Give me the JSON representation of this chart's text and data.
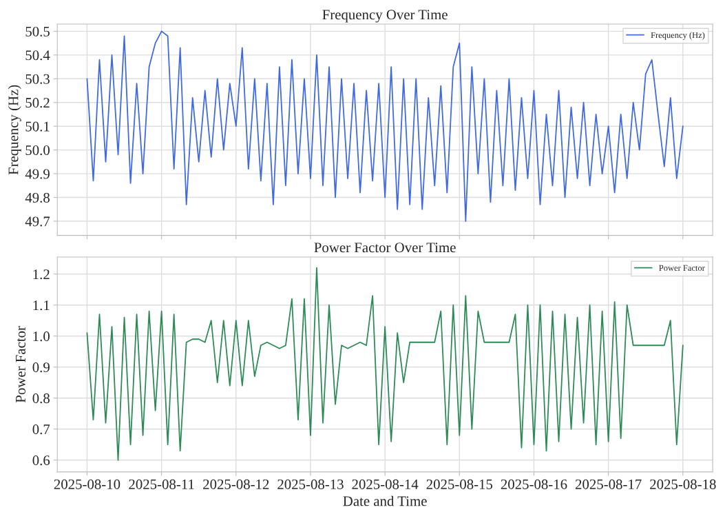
{
  "chart_data": [
    {
      "type": "line",
      "title": "Frequency Over Time",
      "ylabel": "Frequency (Hz)",
      "x": [
        "2025-08-10T00:00",
        "2025-08-10T02:00",
        "2025-08-10T04:00",
        "2025-08-10T06:00",
        "2025-08-10T08:00",
        "2025-08-10T10:00",
        "2025-08-10T12:00",
        "2025-08-10T14:00",
        "2025-08-10T16:00",
        "2025-08-10T18:00",
        "2025-08-10T20:00",
        "2025-08-10T22:00",
        "2025-08-11T00:00",
        "2025-08-11T02:00",
        "2025-08-11T04:00",
        "2025-08-11T06:00",
        "2025-08-11T08:00",
        "2025-08-11T10:00",
        "2025-08-11T12:00",
        "2025-08-11T14:00",
        "2025-08-11T16:00",
        "2025-08-11T18:00",
        "2025-08-11T20:00",
        "2025-08-11T22:00",
        "2025-08-12T00:00",
        "2025-08-12T02:00",
        "2025-08-12T04:00",
        "2025-08-12T06:00",
        "2025-08-12T08:00",
        "2025-08-12T10:00",
        "2025-08-12T12:00",
        "2025-08-12T14:00",
        "2025-08-12T16:00",
        "2025-08-12T18:00",
        "2025-08-12T20:00",
        "2025-08-12T22:00",
        "2025-08-13T00:00",
        "2025-08-13T02:00",
        "2025-08-13T04:00",
        "2025-08-13T06:00",
        "2025-08-13T08:00",
        "2025-08-13T10:00",
        "2025-08-13T12:00",
        "2025-08-13T14:00",
        "2025-08-13T16:00",
        "2025-08-13T18:00",
        "2025-08-13T20:00",
        "2025-08-13T22:00",
        "2025-08-14T00:00",
        "2025-08-14T02:00",
        "2025-08-14T04:00",
        "2025-08-14T06:00",
        "2025-08-14T08:00",
        "2025-08-14T10:00",
        "2025-08-14T12:00",
        "2025-08-14T14:00",
        "2025-08-14T16:00",
        "2025-08-14T18:00",
        "2025-08-14T20:00",
        "2025-08-14T22:00",
        "2025-08-15T00:00",
        "2025-08-15T02:00",
        "2025-08-15T04:00",
        "2025-08-15T06:00",
        "2025-08-15T08:00",
        "2025-08-15T10:00",
        "2025-08-15T12:00",
        "2025-08-15T14:00",
        "2025-08-15T16:00",
        "2025-08-15T18:00",
        "2025-08-15T20:00",
        "2025-08-15T22:00",
        "2025-08-16T00:00",
        "2025-08-16T02:00",
        "2025-08-16T04:00",
        "2025-08-16T06:00",
        "2025-08-16T08:00",
        "2025-08-16T10:00",
        "2025-08-16T12:00",
        "2025-08-16T14:00",
        "2025-08-16T16:00",
        "2025-08-16T18:00",
        "2025-08-16T20:00",
        "2025-08-16T22:00",
        "2025-08-17T00:00",
        "2025-08-17T02:00",
        "2025-08-17T04:00",
        "2025-08-17T06:00",
        "2025-08-17T08:00",
        "2025-08-17T10:00",
        "2025-08-17T12:00",
        "2025-08-17T14:00",
        "2025-08-17T16:00",
        "2025-08-17T18:00",
        "2025-08-17T20:00",
        "2025-08-17T22:00",
        "2025-08-18T00:00"
      ],
      "series": [
        {
          "name": "Frequency (Hz)",
          "color": "#4169e1",
          "values": [
            50.3,
            49.87,
            50.38,
            49.95,
            50.4,
            49.98,
            50.48,
            49.86,
            50.28,
            49.9,
            50.35,
            50.45,
            50.5,
            50.48,
            49.92,
            50.43,
            49.77,
            50.22,
            49.95,
            50.25,
            49.97,
            50.3,
            50.0,
            50.28,
            50.1,
            50.43,
            49.92,
            50.3,
            49.87,
            50.28,
            49.77,
            50.35,
            49.85,
            50.38,
            49.9,
            50.3,
            49.88,
            50.4,
            49.85,
            50.35,
            49.8,
            50.3,
            49.88,
            50.28,
            49.82,
            50.25,
            49.87,
            50.28,
            49.8,
            50.35,
            49.75,
            50.3,
            49.77,
            50.3,
            49.75,
            50.22,
            49.85,
            50.27,
            49.82,
            50.35,
            50.45,
            49.7,
            50.35,
            49.9,
            50.3,
            49.78,
            50.25,
            49.85,
            50.3,
            49.83,
            50.22,
            49.88,
            50.25,
            49.77,
            50.15,
            49.85,
            50.25,
            49.8,
            50.18,
            49.88,
            50.2,
            49.85,
            50.15,
            49.9,
            50.1,
            49.82,
            50.15,
            49.88,
            50.2,
            50.0,
            50.32,
            50.38,
            50.15,
            49.93,
            50.22,
            49.88,
            50.1
          ]
        }
      ],
      "xlim": [
        "2025-08-09T14:24",
        "2025-08-18T09:36"
      ],
      "xticks": [
        "2025-08-10",
        "2025-08-11",
        "2025-08-12",
        "2025-08-13",
        "2025-08-14",
        "2025-08-15",
        "2025-08-16",
        "2025-08-17",
        "2025-08-18"
      ],
      "ylim": [
        49.64,
        50.53
      ],
      "yticks": [
        49.7,
        49.8,
        49.9,
        {
          "value": 50,
          "label": "50.0"
        },
        50.1,
        50.2,
        50.3,
        50.4,
        50.5
      ],
      "grid": true,
      "legend": "top right",
      "tick_labels": "y"
    },
    {
      "type": "line",
      "title": "Power Factor Over Time",
      "ylabel": "Power Factor",
      "xlabel": "Date and Time",
      "x": [
        "2025-08-10T00:00",
        "2025-08-10T02:00",
        "2025-08-10T04:00",
        "2025-08-10T06:00",
        "2025-08-10T08:00",
        "2025-08-10T10:00",
        "2025-08-10T12:00",
        "2025-08-10T14:00",
        "2025-08-10T16:00",
        "2025-08-10T18:00",
        "2025-08-10T20:00",
        "2025-08-10T22:00",
        "2025-08-11T00:00",
        "2025-08-11T02:00",
        "2025-08-11T04:00",
        "2025-08-11T06:00",
        "2025-08-11T08:00",
        "2025-08-11T10:00",
        "2025-08-11T12:00",
        "2025-08-11T14:00",
        "2025-08-11T16:00",
        "2025-08-11T18:00",
        "2025-08-11T20:00",
        "2025-08-11T22:00",
        "2025-08-12T00:00",
        "2025-08-12T02:00",
        "2025-08-12T04:00",
        "2025-08-12T06:00",
        "2025-08-12T08:00",
        "2025-08-12T10:00",
        "2025-08-12T12:00",
        "2025-08-12T14:00",
        "2025-08-12T16:00",
        "2025-08-12T18:00",
        "2025-08-12T20:00",
        "2025-08-12T22:00",
        "2025-08-13T00:00",
        "2025-08-13T02:00",
        "2025-08-13T04:00",
        "2025-08-13T06:00",
        "2025-08-13T08:00",
        "2025-08-13T10:00",
        "2025-08-13T12:00",
        "2025-08-13T14:00",
        "2025-08-13T16:00",
        "2025-08-13T18:00",
        "2025-08-13T20:00",
        "2025-08-13T22:00",
        "2025-08-14T00:00",
        "2025-08-14T02:00",
        "2025-08-14T04:00",
        "2025-08-14T06:00",
        "2025-08-14T08:00",
        "2025-08-14T10:00",
        "2025-08-14T12:00",
        "2025-08-14T14:00",
        "2025-08-14T16:00",
        "2025-08-14T18:00",
        "2025-08-14T20:00",
        "2025-08-14T22:00",
        "2025-08-15T00:00",
        "2025-08-15T02:00",
        "2025-08-15T04:00",
        "2025-08-15T06:00",
        "2025-08-15T08:00",
        "2025-08-15T10:00",
        "2025-08-15T12:00",
        "2025-08-15T14:00",
        "2025-08-15T16:00",
        "2025-08-15T18:00",
        "2025-08-15T20:00",
        "2025-08-15T22:00",
        "2025-08-16T00:00",
        "2025-08-16T02:00",
        "2025-08-16T04:00",
        "2025-08-16T06:00",
        "2025-08-16T08:00",
        "2025-08-16T10:00",
        "2025-08-16T12:00",
        "2025-08-16T14:00",
        "2025-08-16T16:00",
        "2025-08-16T18:00",
        "2025-08-16T20:00",
        "2025-08-16T22:00",
        "2025-08-17T00:00",
        "2025-08-17T02:00",
        "2025-08-17T04:00",
        "2025-08-17T06:00",
        "2025-08-17T08:00",
        "2025-08-17T10:00",
        "2025-08-17T12:00",
        "2025-08-17T14:00",
        "2025-08-17T16:00",
        "2025-08-17T18:00",
        "2025-08-17T20:00",
        "2025-08-17T22:00",
        "2025-08-18T00:00"
      ],
      "series": [
        {
          "name": "Power Factor",
          "color": "#2e8b57",
          "values": [
            1.01,
            0.73,
            1.07,
            0.72,
            1.03,
            0.6,
            1.06,
            0.65,
            1.07,
            0.68,
            1.08,
            0.76,
            1.08,
            0.65,
            1.07,
            0.63,
            0.98,
            0.99,
            0.99,
            0.98,
            1.05,
            0.85,
            1.05,
            0.84,
            1.05,
            0.84,
            1.05,
            0.87,
            0.97,
            0.98,
            0.97,
            0.96,
            0.97,
            1.12,
            0.73,
            1.12,
            0.68,
            1.22,
            0.72,
            1.1,
            0.78,
            0.97,
            0.96,
            0.97,
            0.98,
            0.97,
            1.13,
            0.65,
            1.03,
            0.66,
            1.01,
            0.85,
            0.98,
            0.98,
            0.98,
            0.98,
            0.98,
            1.08,
            0.65,
            1.1,
            0.68,
            1.13,
            0.7,
            1.08,
            0.98,
            0.98,
            0.98,
            0.98,
            0.98,
            1.07,
            0.64,
            1.1,
            0.65,
            1.1,
            0.63,
            1.08,
            0.66,
            1.07,
            0.7,
            1.06,
            0.72,
            1.1,
            0.65,
            1.08,
            0.66,
            1.11,
            0.67,
            1.1,
            0.97,
            0.97,
            0.97,
            0.97,
            0.97,
            0.97,
            1.05,
            0.65,
            0.97
          ]
        }
      ],
      "xlim": [
        "2025-08-09T14:24",
        "2025-08-18T09:36"
      ],
      "xticks": [
        "2025-08-10",
        "2025-08-11",
        "2025-08-12",
        "2025-08-13",
        "2025-08-14",
        "2025-08-15",
        "2025-08-16",
        "2025-08-17",
        "2025-08-18"
      ],
      "ylim": [
        0.562,
        1.255
      ],
      "yticks": [
        0.6,
        0.7,
        0.8,
        0.9,
        {
          "value": 1,
          "label": "1.0"
        },
        1.1,
        1.2
      ],
      "grid": true,
      "legend": "top right"
    }
  ]
}
